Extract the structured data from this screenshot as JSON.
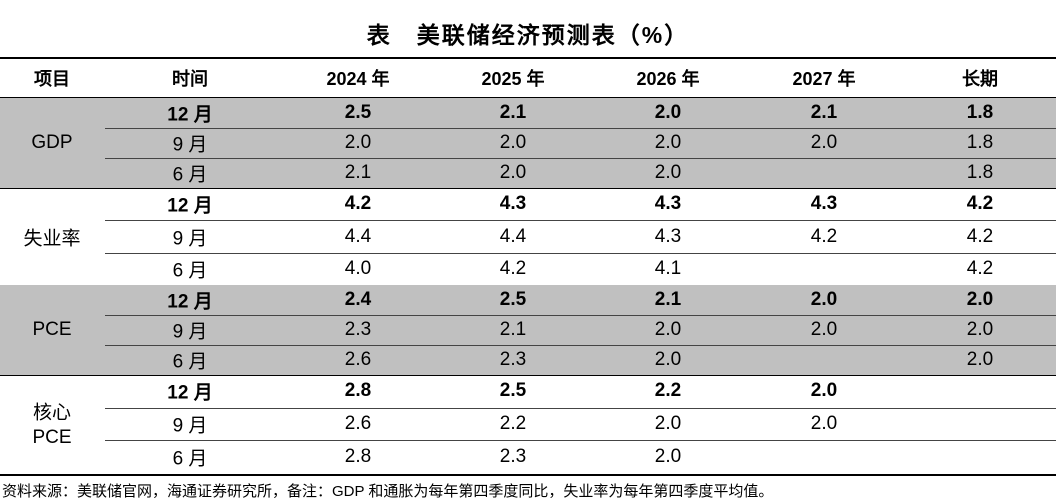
{
  "title": "表　美联储经济预测表（%）",
  "header": [
    "项目",
    "时间",
    "2024 年",
    "2025 年",
    "2026 年",
    "2027 年",
    "长期"
  ],
  "groups": [
    {
      "label": [
        "GDP"
      ],
      "shaded": true,
      "rows": [
        [
          "12 月",
          "2.5",
          "2.1",
          "2.0",
          "2.1",
          "1.8"
        ],
        [
          "9 月",
          "2.0",
          "2.0",
          "2.0",
          "2.0",
          "1.8"
        ],
        [
          "6 月",
          "2.1",
          "2.0",
          "2.0",
          null,
          "1.8"
        ]
      ]
    },
    {
      "label": [
        "失业率"
      ],
      "shaded": false,
      "rows": [
        [
          "12 月",
          "4.2",
          "4.3",
          "4.3",
          "4.3",
          "4.2"
        ],
        [
          "9 月",
          "4.4",
          "4.4",
          "4.3",
          "4.2",
          "4.2"
        ],
        [
          "6 月",
          "4.0",
          "4.2",
          "4.1",
          null,
          "4.2"
        ]
      ]
    },
    {
      "label": [
        "PCE"
      ],
      "shaded": true,
      "rows": [
        [
          "12 月",
          "2.4",
          "2.5",
          "2.1",
          "2.0",
          "2.0"
        ],
        [
          "9 月",
          "2.3",
          "2.1",
          "2.0",
          "2.0",
          "2.0"
        ],
        [
          "6 月",
          "2.6",
          "2.3",
          "2.0",
          null,
          "2.0"
        ]
      ]
    },
    {
      "label": [
        "核心",
        "PCE"
      ],
      "shaded": false,
      "rows": [
        [
          "12 月",
          "2.8",
          "2.5",
          "2.2",
          "2.0",
          null
        ],
        [
          "9 月",
          "2.6",
          "2.2",
          "2.0",
          "2.0",
          null
        ],
        [
          "6 月",
          "2.8",
          "2.3",
          "2.0",
          null,
          null
        ]
      ]
    }
  ],
  "note": "资料来源：美联储官网，海通证券研究所，备注：GDP 和通胀为每年第四季度同比，失业率为每年第四季度平均值。"
}
